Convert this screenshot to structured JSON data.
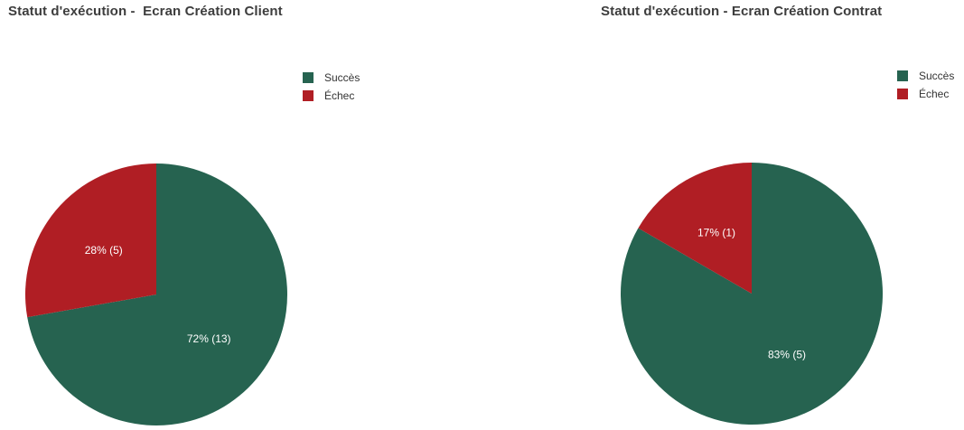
{
  "colors": {
    "success": "#266350",
    "failure": "#B01E24"
  },
  "chart_data": [
    {
      "type": "pie",
      "title": "Statut d'exécution -  Ecran Création Client",
      "legend": {
        "position": "top-right"
      },
      "slices": [
        {
          "name": "Succès",
          "value": 13,
          "label": "72% (13)",
          "color": "#266350"
        },
        {
          "name": "Échec",
          "value": 5,
          "label": "28% (5)",
          "color": "#B01E24"
        }
      ]
    },
    {
      "type": "pie",
      "title": "Statut d'exécution - Ecran Création Contrat",
      "legend": {
        "position": "top-right"
      },
      "slices": [
        {
          "name": "Succès",
          "value": 5,
          "label": "83% (5)",
          "color": "#266350"
        },
        {
          "name": "Échec",
          "value": 1,
          "label": "17% (1)",
          "color": "#B01E24"
        }
      ]
    }
  ]
}
